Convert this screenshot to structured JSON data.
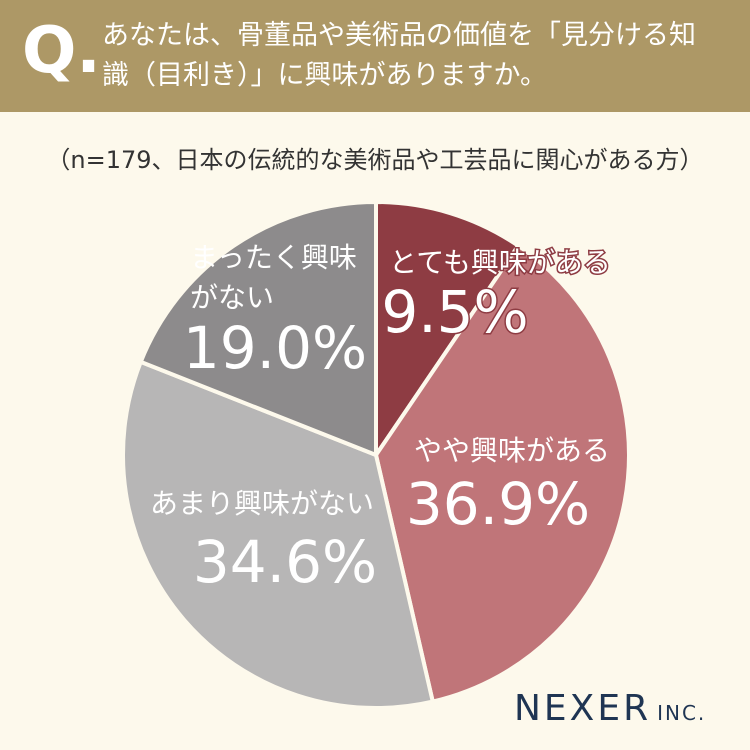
{
  "header": {
    "q_mark": "Q.",
    "question": "あなたは、骨董品や美術品の価値を「見分ける知識（目利き）」に興味がありますか。"
  },
  "chart_data": {
    "type": "pie",
    "subtitle": "（n=179、日本の伝統的な美術品や工芸品に関心がある方）",
    "categories": [
      "とても興味がある",
      "やや興味がある",
      "あまり興味がない",
      "まったく興味がない"
    ],
    "values": [
      9.5,
      36.9,
      34.6,
      19
    ],
    "value_labels": [
      "9.5%",
      "36.9%",
      "34.6%",
      "19.0%"
    ],
    "colors": [
      "#8e3c43",
      "#c07579",
      "#b7b6b6",
      "#8d8b8c"
    ]
  },
  "brand": {
    "name": "NEXER",
    "suffix": "INC."
  }
}
